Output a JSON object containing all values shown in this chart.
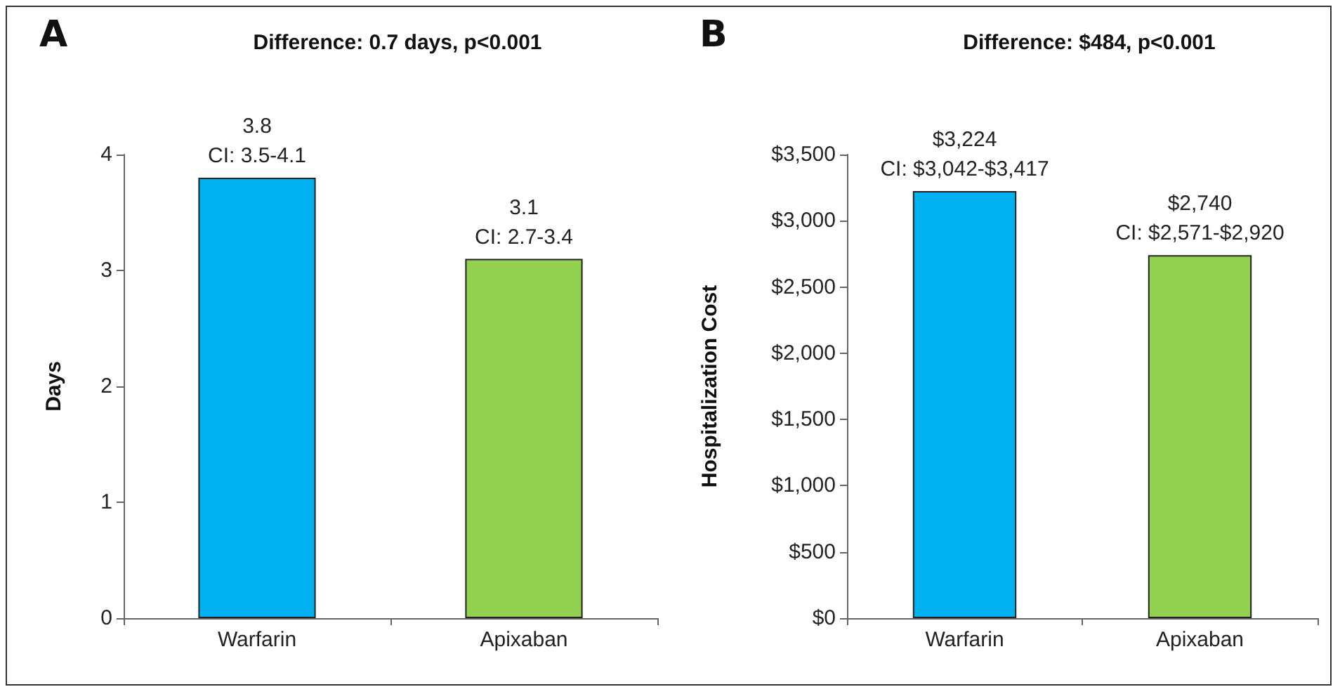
{
  "chart_data": [
    {
      "type": "bar",
      "title": "Difference: 0.7 days, p<0.001",
      "ylabel": "Days",
      "annotations": [
        "A"
      ],
      "categories": [
        "Warfarin",
        "Apixaban"
      ],
      "series": [
        {
          "values": [
            3.8,
            3.1
          ],
          "colors": [
            "#00b0f0",
            "#92d050"
          ],
          "value_labels": [
            "3.8\nCI: 3.5-4.1",
            "3.1\nCI: 2.7-3.4"
          ]
        }
      ],
      "ylim": [
        0,
        4
      ],
      "yticks": [
        0,
        1,
        2,
        3,
        4
      ],
      "grid": false
    },
    {
      "type": "bar",
      "title": "Difference: $484, p<0.001",
      "ylabel": "Hospitalization Cost",
      "annotations": [
        "B"
      ],
      "categories": [
        "Warfarin",
        "Apixaban"
      ],
      "series": [
        {
          "values": [
            3224,
            2740
          ],
          "colors": [
            "#00b0f0",
            "#92d050"
          ],
          "value_labels": [
            "$3,224\nCI: $3,042-$3,417",
            "$2,740\nCI: $2,571-$2,920"
          ]
        }
      ],
      "ylim": [
        0,
        3500
      ],
      "yticks": [
        {
          "value": 0,
          "label": "$0"
        },
        {
          "value": 500,
          "label": "$500"
        },
        {
          "value": 1000,
          "label": "$1,000"
        },
        {
          "value": 1500,
          "label": "$1,500"
        },
        {
          "value": 2000,
          "label": "$2,000"
        },
        {
          "value": 2500,
          "label": "$2,500"
        },
        {
          "value": 3000,
          "label": "$3,000"
        },
        {
          "value": 3500,
          "label": "$3,500"
        }
      ],
      "grid": false
    }
  ]
}
